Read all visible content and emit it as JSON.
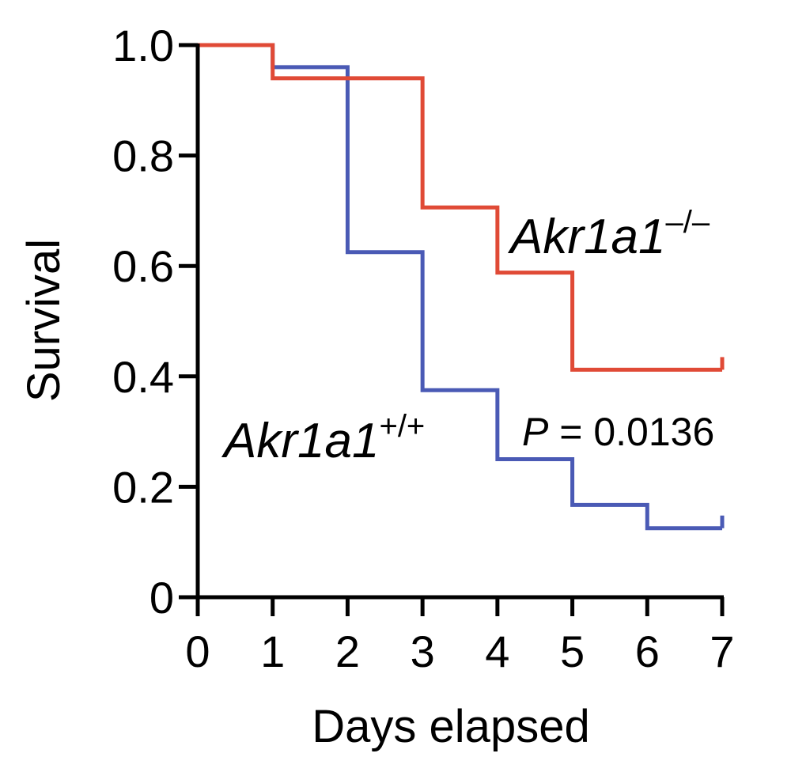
{
  "chart_data": {
    "type": "line",
    "step": true,
    "title": "",
    "xlabel": "Days elapsed",
    "ylabel": "Survival",
    "xlim": [
      0,
      7
    ],
    "ylim": [
      0,
      1.0
    ],
    "xticks": [
      0,
      1,
      2,
      3,
      4,
      5,
      6,
      7
    ],
    "xtick_labels": [
      "0",
      "1",
      "2",
      "3",
      "4",
      "5",
      "6",
      "7"
    ],
    "yticks": [
      0,
      0.2,
      0.4,
      0.6,
      0.8,
      1.0
    ],
    "ytick_labels": [
      "0",
      "0.2",
      "0.4",
      "0.6",
      "0.8",
      "1.0"
    ],
    "grid": false,
    "series": [
      {
        "name": "Akr1a1",
        "genotype": "+/+",
        "color": "#4a5ab5",
        "x": [
          0,
          1,
          2,
          3,
          4,
          5,
          6,
          7
        ],
        "y": [
          1.0,
          0.96,
          0.625,
          0.375,
          0.25,
          0.167,
          0.125,
          0.125
        ]
      },
      {
        "name": "Akr1a1",
        "genotype": "–/–",
        "color": "#e04a36",
        "x": [
          0,
          1,
          3,
          4,
          5,
          7
        ],
        "y": [
          1.0,
          0.94,
          0.706,
          0.588,
          0.412,
          0.412
        ]
      }
    ],
    "annotations": {
      "p_symbol": "P",
      "p_text": " = 0.0136"
    }
  }
}
